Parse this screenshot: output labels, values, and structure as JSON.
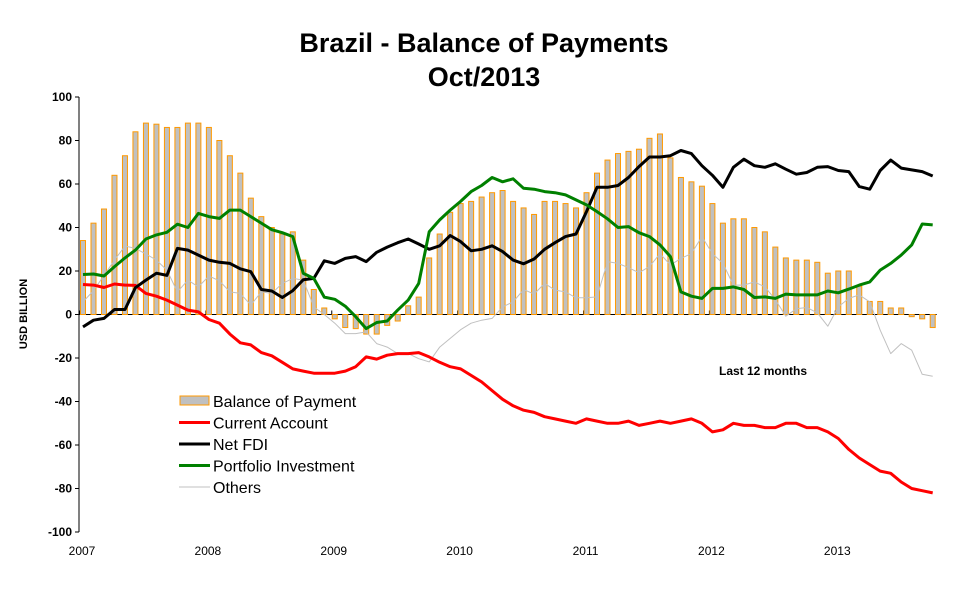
{
  "chart_data": {
    "type": "bar+line",
    "title": "Brazil - Balance of Payments",
    "subtitle": "Oct/2013",
    "ylabel": "USD BILLION",
    "xlabel": "",
    "ylim": [
      -100,
      100
    ],
    "yticks": [
      "100",
      "80",
      "60",
      "40",
      "20",
      "0",
      "-20",
      "-40",
      "-60",
      "-80",
      "-100"
    ],
    "xticks": [
      "2007",
      "2008",
      "2009",
      "2010",
      "2011",
      "2012",
      "2013"
    ],
    "x_start": "2007-01",
    "x_end": "2013-10",
    "frequency": "monthly",
    "annotation": "Last 12 months",
    "legend_position": "lower-left",
    "grid": false,
    "series": [
      {
        "name": "Balance of Payment",
        "type": "bar",
        "color": "#c0c0c0",
        "border": "#ff9900",
        "values": [
          34,
          42,
          48.5,
          64,
          73,
          84,
          88,
          87.5,
          86,
          86,
          88,
          88,
          86,
          80,
          73,
          65,
          53.5,
          45,
          40,
          37,
          38,
          25,
          11.5,
          3,
          -2,
          -6,
          -6.5,
          -9,
          -9,
          -5,
          -3,
          4,
          8,
          26,
          37,
          47,
          51,
          52,
          54,
          56,
          57,
          52,
          49,
          46,
          52,
          52,
          51,
          49,
          56,
          65,
          71,
          74,
          75,
          76,
          81,
          83,
          72,
          63,
          61,
          59,
          51,
          42,
          44,
          44,
          40,
          38,
          31,
          26,
          25,
          25,
          24,
          19,
          20,
          20,
          13,
          6,
          6,
          3,
          3,
          -1,
          -2,
          -6
        ]
      },
      {
        "name": "Current Account",
        "type": "line",
        "color": "#ff0000",
        "values": [
          13.8,
          13.5,
          12.4,
          14,
          13.5,
          13.4,
          9.7,
          8.4,
          6.6,
          4.3,
          2,
          1.2,
          -2.3,
          -4,
          -9,
          -13,
          -14,
          -17.5,
          -19,
          -22,
          -25,
          -26,
          -27,
          -27,
          -27,
          -26,
          -24,
          -19.5,
          -20.5,
          -18.7,
          -18,
          -18,
          -17.5,
          -19.5,
          -22,
          -24,
          -25,
          -28,
          -31,
          -35,
          -39,
          -42,
          -44,
          -45,
          -47,
          -48,
          -49,
          -50,
          -48,
          -49,
          -50,
          -50,
          -49,
          -51,
          -50,
          -49,
          -50,
          -49,
          -48,
          -50,
          -54,
          -53,
          -50,
          -51,
          -51,
          -52,
          -52,
          -50,
          -50,
          -52,
          -52,
          -54,
          -57,
          -62,
          -66,
          -69,
          -72,
          -73,
          -77,
          -80,
          -81,
          -82
        ]
      },
      {
        "name": "Net FDI",
        "type": "line",
        "color": "#000000",
        "values": [
          -5.7,
          -2.6,
          -1.8,
          2.3,
          2.3,
          12.3,
          15.8,
          19,
          18,
          30.4,
          29.6,
          27.3,
          25,
          24,
          23.5,
          21,
          19.7,
          11.5,
          10.8,
          7.8,
          11,
          16,
          16.6,
          24.7,
          23.5,
          25.8,
          26.6,
          24.3,
          28.6,
          31,
          33,
          34.7,
          32.4,
          30,
          31.6,
          36.3,
          33.5,
          29.3,
          30,
          31.6,
          28.9,
          25,
          23.3,
          25.5,
          30,
          33,
          35.8,
          37,
          47.3,
          58.5,
          58.5,
          59.3,
          63,
          68,
          72.4,
          72.4,
          73,
          75.4,
          74,
          68.4,
          64,
          58.5,
          67.7,
          71.4,
          68.4,
          67.7,
          69.3,
          66.8,
          64.5,
          65.3,
          67.7,
          68,
          66.2,
          65.7,
          58.8,
          57.6,
          66.2,
          71,
          67.3,
          66.5,
          65.7,
          63.7
        ]
      },
      {
        "name": "Portfolio Investment",
        "type": "line",
        "color": "#008000",
        "values": [
          18.4,
          18.6,
          17.7,
          22,
          26,
          29.6,
          34.7,
          36.6,
          37.8,
          41.5,
          40,
          46.5,
          45,
          44.2,
          48,
          48,
          45,
          42,
          39,
          37.6,
          35.8,
          18.9,
          16.6,
          8,
          7,
          3.8,
          -1,
          -6.5,
          -3.7,
          -3,
          2,
          6.6,
          14.3,
          38,
          43.5,
          48,
          52,
          56.5,
          59.3,
          63,
          61,
          62.4,
          58,
          57.6,
          56.5,
          56,
          55,
          52.7,
          50.4,
          47.3,
          44,
          40,
          40.4,
          37.6,
          35.8,
          32,
          26.6,
          10.4,
          8.4,
          7.4,
          12,
          12,
          12.7,
          11.5,
          7.8,
          8.1,
          7.4,
          9.4,
          9,
          9,
          9,
          10.8,
          10,
          11.7,
          13.5,
          15,
          20.4,
          23.5,
          27.3,
          32,
          41.6,
          41.2
        ]
      },
      {
        "name": "Others",
        "type": "line",
        "color": "#c0c0c0",
        "values": [
          5.8,
          11,
          18,
          25,
          31.5,
          30.4,
          27.8,
          25,
          20.4,
          10.4,
          15.8,
          12.7,
          17.7,
          15.5,
          10.4,
          9.7,
          4.3,
          10.4,
          9.7,
          14.3,
          16.6,
          15.8,
          3.5,
          0,
          -4,
          -8.8,
          -8.8,
          -8,
          -13.4,
          -15,
          -18,
          -18,
          -20.3,
          -21.8,
          -15,
          -11,
          -7,
          -4,
          -2.6,
          -1.8,
          3.5,
          5.8,
          11.5,
          9.4,
          14.3,
          11.2,
          10.4,
          7.7,
          7.7,
          8.1,
          24.3,
          23.5,
          21.5,
          19.2,
          22,
          28,
          22.7,
          25.8,
          28,
          35.8,
          28,
          23.5,
          13.5,
          13.5,
          15,
          12.7,
          6.9,
          -0.8,
          2.6,
          3.2,
          0.8,
          -5.4,
          3.5,
          7.4,
          9,
          5.8,
          -7.2,
          -18,
          -13.4,
          -16.4,
          -27.5,
          -28.4
        ]
      }
    ]
  }
}
